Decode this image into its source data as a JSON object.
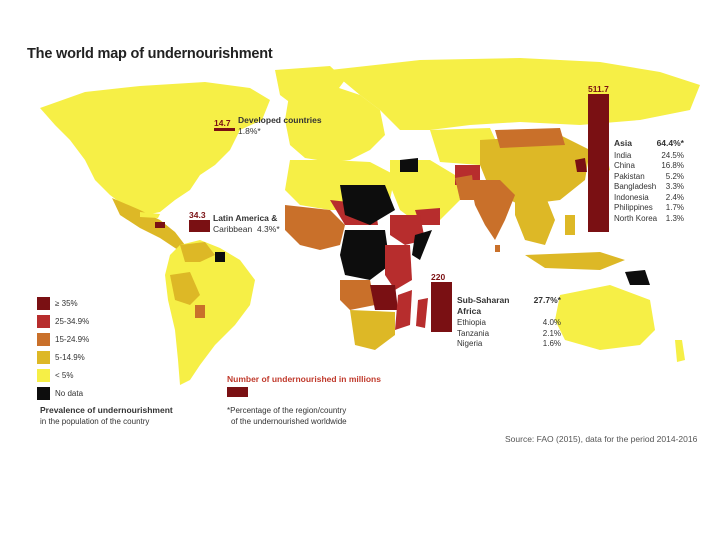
{
  "title": "The world map of undernourishment",
  "colors": {
    "ge35": "#7a1013",
    "c25_34": "#b72d2d",
    "c15_24": "#c9702a",
    "c5_14": "#ddb826",
    "lt5": "#f6ef46",
    "nodata": "#0d0d0d",
    "ocean": "#ffffff",
    "bar": "#7a1013"
  },
  "legend": {
    "items": [
      {
        "label": "≥ 35%",
        "key": "ge35"
      },
      {
        "label": "25-34.9%",
        "key": "c25_34"
      },
      {
        "label": "15-24.9%",
        "key": "c15_24"
      },
      {
        "label": "5-14.9%",
        "key": "c5_14"
      },
      {
        "label": "< 5%",
        "key": "lt5"
      },
      {
        "label": "No data",
        "key": "nodata"
      }
    ],
    "heading": "Prevalence of undernourishment",
    "subheading": "in the population of the country"
  },
  "regions": {
    "developed": {
      "count": "14.7",
      "name": "Developed countries",
      "pct": "1.8%*"
    },
    "latam": {
      "count": "34.3",
      "name_line1": "Latin America &",
      "name_line2": "Caribbean",
      "pct": "4.3%*"
    },
    "africa": {
      "count": "220",
      "name": "Sub-Saharan Africa",
      "pct": "27.7%*",
      "countries": [
        {
          "name": "Ethiopia",
          "pct": "4.0%"
        },
        {
          "name": "Tanzania",
          "pct": "2.1%"
        },
        {
          "name": "Nigeria",
          "pct": "1.6%"
        }
      ]
    },
    "asia": {
      "count": "511.7",
      "name": "Asia",
      "pct": "64.4%*",
      "countries": [
        {
          "name": "India",
          "pct": "24.5%"
        },
        {
          "name": "China",
          "pct": "16.8%"
        },
        {
          "name": "Pakistan",
          "pct": "5.2%"
        },
        {
          "name": "Bangladesh",
          "pct": "3.3%"
        },
        {
          "name": "Indonesia",
          "pct": "2.4%"
        },
        {
          "name": "Philippines",
          "pct": "1.7%"
        },
        {
          "name": "North Korea",
          "pct": "1.3%"
        }
      ]
    }
  },
  "count_legend": {
    "label": "Number of undernourished in millions",
    "note_line1": "*Percentage of the region/country",
    "note_line2": "of the undernourished worldwide"
  },
  "source": "Source: FAO (2015), data for the period 2014-2016"
}
